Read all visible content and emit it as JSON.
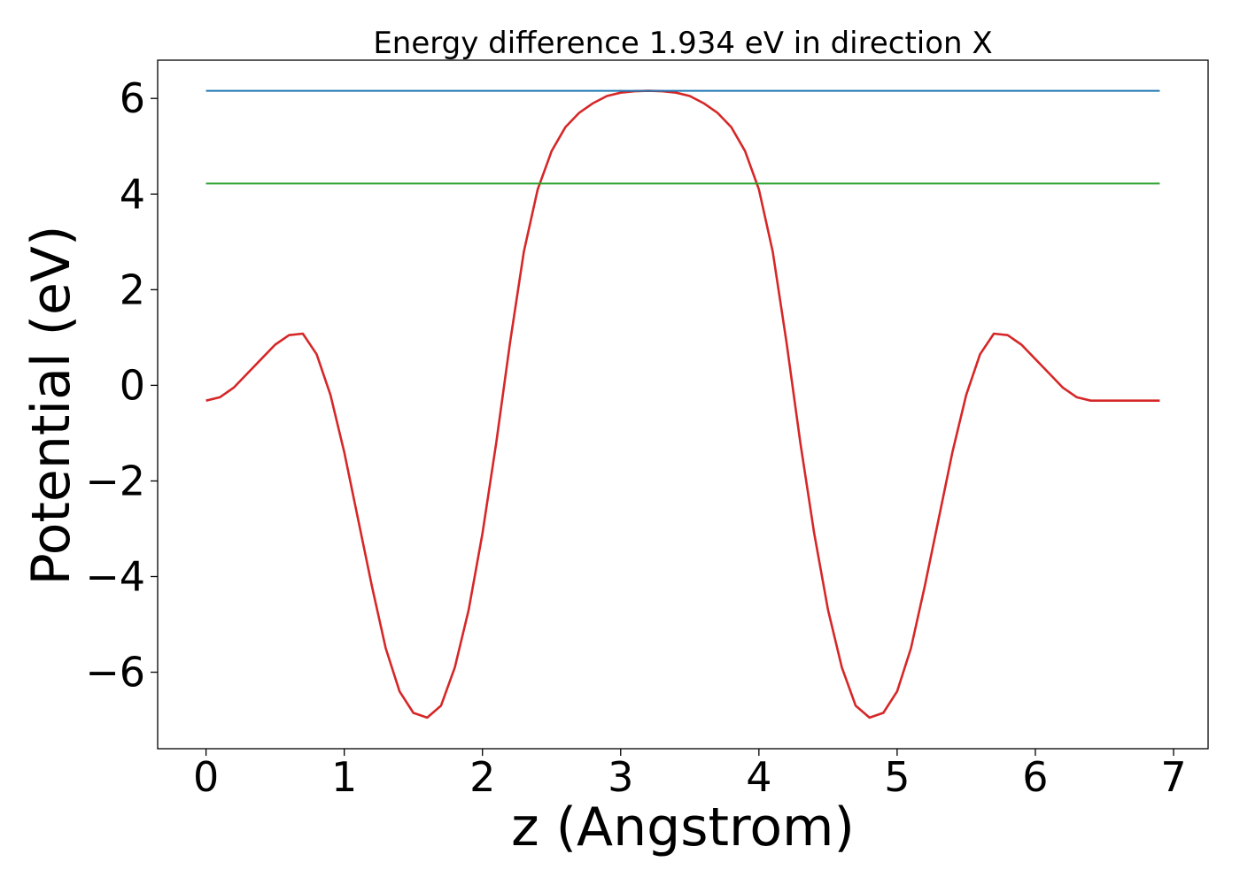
{
  "chart_data": {
    "type": "line",
    "title": "Energy difference 1.934 eV in direction X",
    "xlabel": "z (Angstrom)",
    "ylabel": "Potential (eV)",
    "xlim": [
      -0.35,
      7.25
    ],
    "ylim": [
      -7.6,
      6.8
    ],
    "xticks": [
      0,
      1,
      2,
      3,
      4,
      5,
      6,
      7
    ],
    "xtick_labels": [
      "0",
      "1",
      "2",
      "3",
      "4",
      "5",
      "6",
      "7"
    ],
    "yticks": [
      -6,
      -4,
      -2,
      0,
      2,
      4,
      6
    ],
    "ytick_labels": [
      "−6",
      "−4",
      "−2",
      "0",
      "2",
      "4",
      "6"
    ],
    "grid": false,
    "legend": "none",
    "series": [
      {
        "color": "#d62728",
        "x": [
          0,
          0.1,
          0.2,
          0.3,
          0.4,
          0.5,
          0.6,
          0.7,
          0.8,
          0.9,
          1.0,
          1.1,
          1.2,
          1.3,
          1.4,
          1.5,
          1.6,
          1.7,
          1.8,
          1.9,
          2.0,
          2.1,
          2.2,
          2.3,
          2.4,
          2.5,
          2.6,
          2.7,
          2.8,
          2.9,
          3.0,
          3.1,
          3.2,
          3.3,
          3.4,
          3.5,
          3.6,
          3.7,
          3.8,
          3.9,
          4.0,
          4.1,
          4.2,
          4.3,
          4.4,
          4.5,
          4.6,
          4.7,
          4.8,
          4.9,
          5.0,
          5.1,
          5.2,
          5.3,
          5.4,
          5.5,
          5.6,
          5.7,
          5.8,
          5.9,
          6.0,
          6.1,
          6.2,
          6.3,
          6.4,
          6.5,
          6.6,
          6.7,
          6.8,
          6.9
        ],
        "y": [
          -0.32,
          -0.25,
          -0.05,
          0.25,
          0.55,
          0.85,
          1.05,
          1.08,
          0.65,
          -0.2,
          -1.4,
          -2.8,
          -4.2,
          -5.5,
          -6.4,
          -6.85,
          -6.95,
          -6.7,
          -5.9,
          -4.7,
          -3.1,
          -1.2,
          0.9,
          2.8,
          4.1,
          4.9,
          5.4,
          5.7,
          5.9,
          6.05,
          6.12,
          6.15,
          6.16,
          6.15,
          6.12,
          6.05,
          5.9,
          5.7,
          5.4,
          4.9,
          4.1,
          2.8,
          0.9,
          -1.2,
          -3.1,
          -4.7,
          -5.9,
          -6.7,
          -6.95,
          -6.85,
          -6.4,
          -5.5,
          -4.2,
          -2.8,
          -1.4,
          -0.2,
          0.65,
          1.08,
          1.05,
          0.85,
          0.55,
          0.25,
          -0.05,
          -0.25,
          -0.32,
          -0.32,
          -0.32,
          -0.32,
          -0.32,
          -0.32
        ]
      },
      {
        "color": "#1f77b4",
        "x": [
          0,
          6.9
        ],
        "y": [
          6.16,
          6.16
        ]
      },
      {
        "color": "#2ca02c",
        "x": [
          0,
          6.9
        ],
        "y": [
          4.22,
          4.22
        ]
      }
    ]
  }
}
